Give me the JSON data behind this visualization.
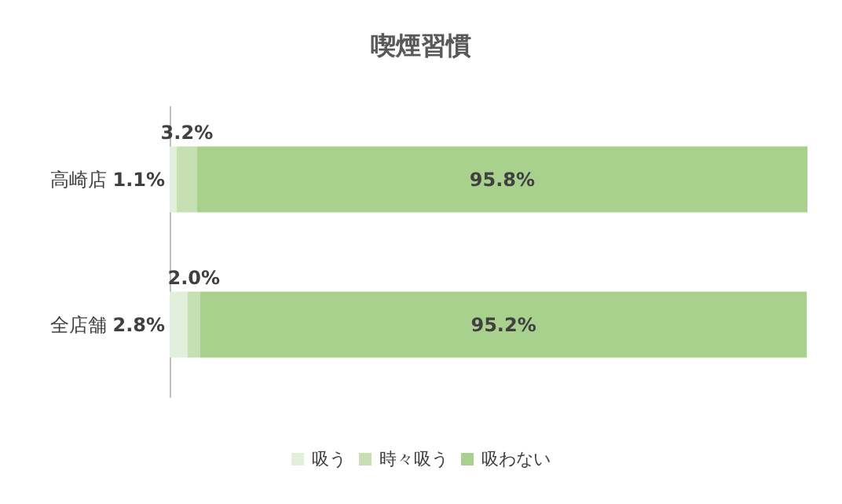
{
  "chart_data": {
    "type": "bar",
    "title": "喫煙習慣",
    "orientation": "horizontal",
    "stacked": true,
    "categories": [
      "高崎店",
      "全店舗"
    ],
    "series": [
      {
        "name": "吸う",
        "color": "#e2efda",
        "values": [
          1.1,
          2.8
        ],
        "value_labels": [
          "1.1%",
          "2.8%"
        ]
      },
      {
        "name": "時々吸う",
        "color": "#c6e0b4",
        "values": [
          3.2,
          2.0
        ],
        "value_labels": [
          "3.2%",
          "2.0%"
        ]
      },
      {
        "name": "吸わない",
        "color": "#a9d18e",
        "values": [
          95.8,
          95.2
        ],
        "value_labels": [
          "95.8%",
          "95.2%"
        ]
      }
    ],
    "legend": "bottom"
  }
}
